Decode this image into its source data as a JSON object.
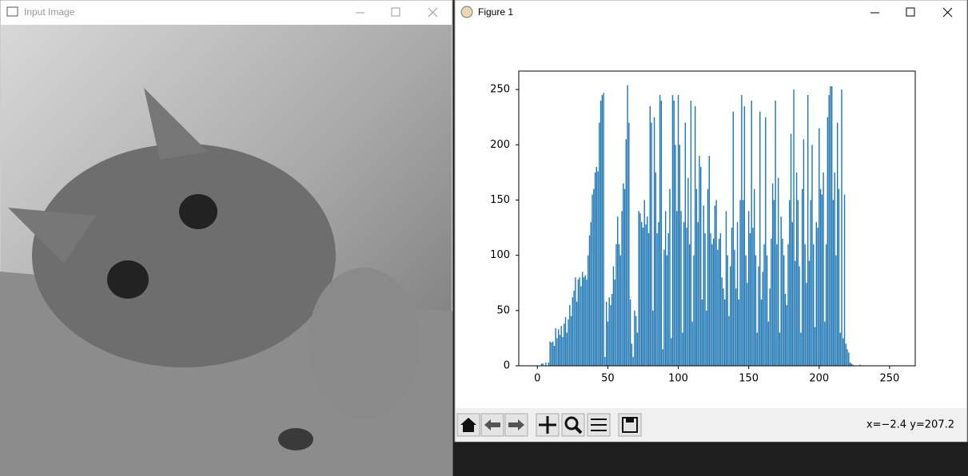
{
  "image_window": {
    "title": "Input Image"
  },
  "figure_window": {
    "title": "Figure 1",
    "status": "x=−2.4 y=207.2"
  },
  "chart_data": {
    "type": "bar",
    "color": "#1f77b4",
    "x": [
      0,
      1,
      2,
      3,
      4,
      5,
      6,
      7,
      8,
      9,
      10,
      11,
      12,
      13,
      14,
      15,
      16,
      17,
      18,
      19,
      20,
      21,
      22,
      23,
      24,
      25,
      26,
      27,
      28,
      29,
      30,
      31,
      32,
      33,
      34,
      35,
      36,
      37,
      38,
      39,
      40,
      41,
      42,
      43,
      44,
      45,
      46,
      47,
      48,
      49,
      50,
      51,
      52,
      53,
      54,
      55,
      56,
      57,
      58,
      59,
      60,
      61,
      62,
      63,
      64,
      65,
      66,
      67,
      68,
      69,
      70,
      71,
      72,
      73,
      74,
      75,
      76,
      77,
      78,
      79,
      80,
      81,
      82,
      83,
      84,
      85,
      86,
      87,
      88,
      89,
      90,
      91,
      92,
      93,
      94,
      95,
      96,
      97,
      98,
      99,
      100,
      101,
      102,
      103,
      104,
      105,
      106,
      107,
      108,
      109,
      110,
      111,
      112,
      113,
      114,
      115,
      116,
      117,
      118,
      119,
      120,
      121,
      122,
      123,
      124,
      125,
      126,
      127,
      128,
      129,
      130,
      131,
      132,
      133,
      134,
      135,
      136,
      137,
      138,
      139,
      140,
      141,
      142,
      143,
      144,
      145,
      146,
      147,
      148,
      149,
      150,
      151,
      152,
      153,
      154,
      155,
      156,
      157,
      158,
      159,
      160,
      161,
      162,
      163,
      164,
      165,
      166,
      167,
      168,
      169,
      170,
      171,
      172,
      173,
      174,
      175,
      176,
      177,
      178,
      179,
      180,
      181,
      182,
      183,
      184,
      185,
      186,
      187,
      188,
      189,
      190,
      191,
      192,
      193,
      194,
      195,
      196,
      197,
      198,
      199,
      200,
      201,
      202,
      203,
      204,
      205,
      206,
      207,
      208,
      209,
      210,
      211,
      212,
      213,
      214,
      215,
      216,
      217,
      218,
      219,
      220,
      221,
      222,
      223,
      224,
      225,
      226,
      227,
      228,
      229,
      230,
      231,
      232,
      233,
      234,
      235,
      236,
      237,
      238,
      239,
      240,
      241,
      242,
      243,
      244,
      245,
      246,
      247,
      248,
      249,
      250,
      251,
      252,
      253,
      254,
      255
    ],
    "values": [
      0,
      0,
      0,
      2,
      2,
      0,
      3,
      0,
      3,
      22,
      21,
      22,
      18,
      34,
      25,
      33,
      28,
      36,
      26,
      38,
      44,
      30,
      42,
      55,
      45,
      62,
      68,
      80,
      58,
      78,
      80,
      72,
      85,
      80,
      82,
      78,
      100,
      118,
      130,
      155,
      160,
      175,
      180,
      176,
      220,
      240,
      245,
      247,
      8,
      58,
      40,
      62,
      55,
      65,
      90,
      78,
      110,
      135,
      110,
      100,
      140,
      165,
      160,
      205,
      254,
      220,
      60,
      20,
      8,
      50,
      45,
      30,
      140,
      138,
      130,
      125,
      150,
      128,
      135,
      120,
      235,
      220,
      50,
      225,
      175,
      120,
      130,
      245,
      240,
      15,
      105,
      140,
      100,
      120,
      160,
      25,
      245,
      240,
      200,
      140,
      245,
      200,
      140,
      30,
      130,
      220,
      125,
      170,
      110,
      240,
      40,
      100,
      235,
      160,
      130,
      190,
      180,
      60,
      145,
      120,
      50,
      160,
      190,
      120,
      110,
      115,
      145,
      150,
      105,
      115,
      120,
      80,
      70,
      60,
      140,
      100,
      45,
      90,
      125,
      230,
      105,
      70,
      130,
      60,
      150,
      245,
      150,
      235,
      100,
      75,
      140,
      120,
      240,
      125,
      160,
      100,
      30,
      90,
      230,
      60,
      85,
      110,
      225,
      100,
      40,
      70,
      115,
      165,
      150,
      240,
      110,
      170,
      30,
      135,
      115,
      100,
      65,
      55,
      110,
      150,
      210,
      130,
      250,
      95,
      175,
      150,
      90,
      30,
      160,
      205,
      110,
      75,
      245,
      95,
      150,
      200,
      110,
      35,
      130,
      125,
      215,
      160,
      155,
      175,
      40,
      110,
      225,
      245,
      253,
      253,
      150,
      175,
      100,
      220,
      160,
      30,
      250,
      25,
      155,
      20,
      15,
      12,
      3,
      2,
      1,
      0,
      0,
      0,
      0,
      1,
      0,
      0,
      0,
      0,
      0,
      0,
      0,
      0,
      0,
      0,
      0,
      0,
      0,
      0,
      0,
      0,
      0,
      0,
      0,
      0,
      0,
      0,
      0,
      0,
      0,
      0
    ],
    "bar_width": 0.8,
    "xlim": [
      -13.2,
      268.2
    ],
    "xticks": [
      0,
      50,
      100,
      150,
      200,
      250
    ],
    "ylim": [
      0,
      266.7
    ],
    "yticks": [
      0,
      50,
      100,
      150,
      200,
      250
    ]
  }
}
